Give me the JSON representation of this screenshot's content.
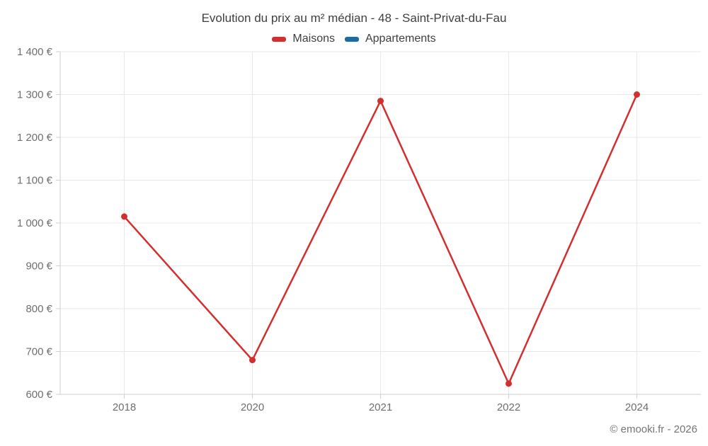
{
  "title": "Evolution du prix au m² médian - 48 - Saint-Privat-du-Fau",
  "legend": {
    "items": [
      {
        "label": "Maisons",
        "color": "#d32f2f"
      },
      {
        "label": "Appartements",
        "color": "#1a6d9e"
      }
    ]
  },
  "copyright": "© emooki.fr - 2026",
  "colors": {
    "maisons": "#d32f2f",
    "appartements": "#1a6d9e",
    "gridline": "#e8e8e8",
    "axis_line": "#cfcfcf",
    "axis_label": "#6e6e6e"
  },
  "chart_data": {
    "type": "line",
    "categories": [
      "2018",
      "2020",
      "2021",
      "2022",
      "2024"
    ],
    "series": [
      {
        "name": "Maisons",
        "color": "#d32f2f",
        "values": [
          1015,
          680,
          1285,
          625,
          1300
        ]
      },
      {
        "name": "Appartements",
        "color": "#1a6d9e",
        "values": []
      }
    ],
    "title": "Evolution du prix au m² médian - 48 - Saint-Privat-du-Fau",
    "xlabel": "",
    "ylabel": "",
    "ylim": [
      600,
      1400
    ],
    "ytick_step": 100,
    "ytick_labels": [
      "600 €",
      "700 €",
      "800 €",
      "900 €",
      "1 000 €",
      "1 100 €",
      "1 200 €",
      "1 300 €",
      "1 400 €"
    ],
    "grid": true,
    "legend_position": "top"
  }
}
